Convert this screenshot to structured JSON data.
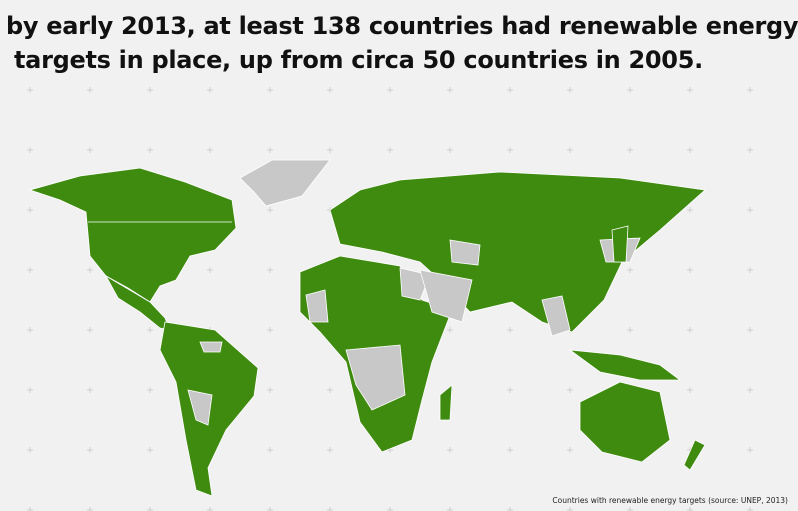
{
  "title": {
    "line1": "by early 2013, at least 138 countries had renewable energy",
    "line2": "targets in place, up from circa 50 countries in 2005."
  },
  "caption": "Countries with renewable energy targets (source: UNEP, 2013)"
}
